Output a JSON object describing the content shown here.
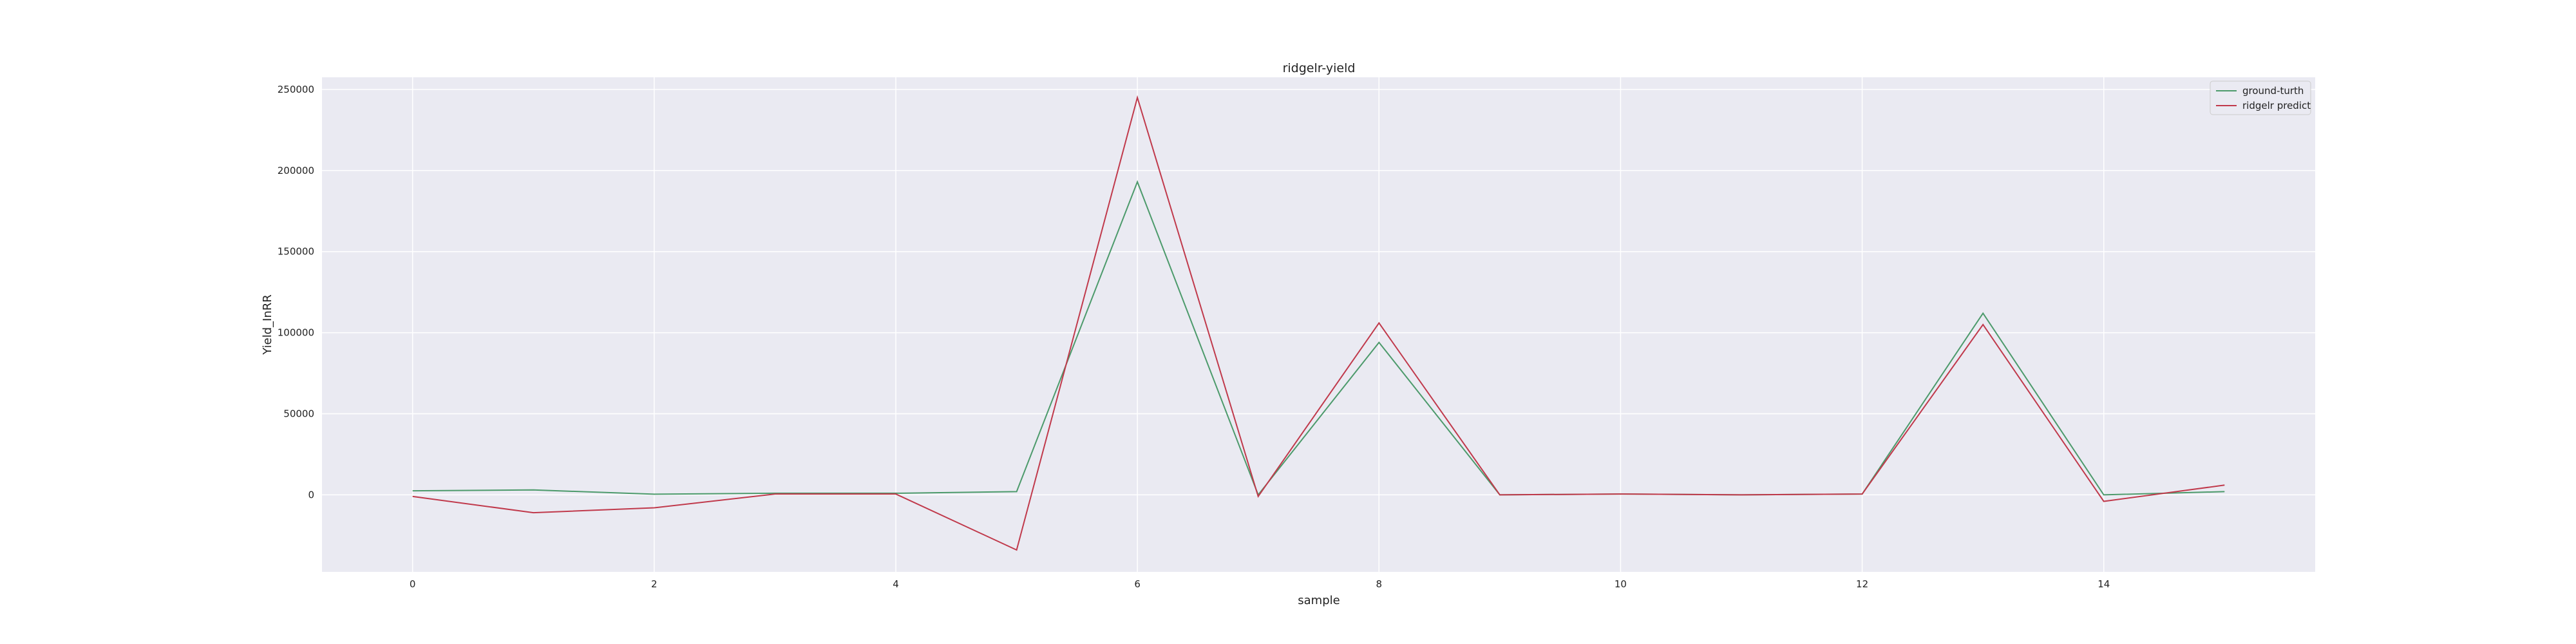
{
  "chart_data": {
    "type": "line",
    "title": "ridgelr-yield",
    "xlabel": "sample",
    "ylabel": "Yield_InRR",
    "x": [
      0,
      1,
      2,
      3,
      4,
      5,
      6,
      7,
      8,
      9,
      10,
      11,
      12,
      13,
      14,
      15
    ],
    "series": [
      {
        "name": "ground-turth",
        "color": "#4c9a6b",
        "values": [
          2500,
          3000,
          400,
          1000,
          1000,
          2000,
          193000,
          0,
          94000,
          0,
          500,
          0,
          500,
          112000,
          0,
          2000
        ]
      },
      {
        "name": "ridgelr predict",
        "color": "#c0394b",
        "values": [
          -1000,
          -11000,
          -8000,
          500,
          500,
          -34000,
          245000,
          -1000,
          106000,
          0,
          500,
          0,
          500,
          105000,
          -4000,
          6000
        ]
      }
    ],
    "xlim": [
      -0.75,
      15.75
    ],
    "ylim": [
      -47500,
      257500
    ],
    "xticks": [
      0,
      2,
      4,
      6,
      8,
      10,
      12,
      14
    ],
    "yticks": [
      0,
      50000,
      100000,
      150000,
      200000,
      250000
    ],
    "grid": true,
    "legend_position": "top-right",
    "background_color": "#eaeaf2"
  }
}
